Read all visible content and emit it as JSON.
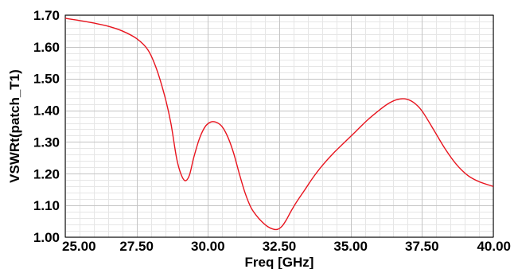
{
  "chart_data": {
    "type": "line",
    "title": "",
    "xlabel": "Freq [GHz]",
    "ylabel": "VSWRt(patch_T1)",
    "xlim": [
      25.0,
      40.0
    ],
    "ylim": [
      1.0,
      1.7
    ],
    "x_ticks": [
      25.0,
      27.5,
      30.0,
      32.5,
      35.0,
      37.5,
      40.0
    ],
    "x_tick_labels": [
      "25.00",
      "27.50",
      "30.00",
      "32.50",
      "35.00",
      "37.50",
      "40.00"
    ],
    "y_ticks": [
      1.0,
      1.1,
      1.2,
      1.3,
      1.4,
      1.5,
      1.6,
      1.7
    ],
    "y_tick_labels": [
      "1.00",
      "1.10",
      "1.20",
      "1.30",
      "1.40",
      "1.50",
      "1.60",
      "1.70"
    ],
    "grid": true,
    "minor_grid": true,
    "legend": "none",
    "series": [
      {
        "color": "#e8141e",
        "x": [
          25.0,
          25.5,
          26.0,
          26.5,
          27.0,
          27.5,
          27.9,
          28.2,
          28.5,
          28.7,
          28.9,
          29.05,
          29.2,
          29.35,
          29.5,
          29.7,
          29.9,
          30.1,
          30.3,
          30.5,
          30.7,
          30.9,
          31.1,
          31.3,
          31.5,
          31.7,
          31.9,
          32.1,
          32.3,
          32.45,
          32.6,
          32.75,
          32.9,
          33.1,
          33.4,
          33.7,
          34.0,
          34.4,
          34.8,
          35.2,
          35.6,
          36.0,
          36.3,
          36.6,
          36.9,
          37.2,
          37.5,
          37.9,
          38.3,
          38.7,
          39.1,
          39.5,
          40.0
        ],
        "y": [
          1.69,
          1.683,
          1.675,
          1.665,
          1.65,
          1.626,
          1.59,
          1.53,
          1.44,
          1.36,
          1.25,
          1.2,
          1.178,
          1.195,
          1.25,
          1.31,
          1.348,
          1.363,
          1.362,
          1.348,
          1.315,
          1.265,
          1.2,
          1.14,
          1.095,
          1.068,
          1.048,
          1.033,
          1.025,
          1.025,
          1.035,
          1.055,
          1.08,
          1.11,
          1.15,
          1.19,
          1.225,
          1.265,
          1.3,
          1.335,
          1.37,
          1.4,
          1.42,
          1.433,
          1.436,
          1.425,
          1.398,
          1.34,
          1.28,
          1.23,
          1.195,
          1.175,
          1.16
        ]
      }
    ]
  }
}
